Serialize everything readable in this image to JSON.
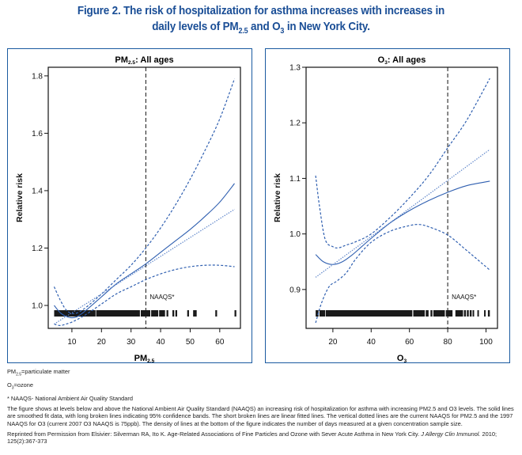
{
  "figure": {
    "title_line1": "Figure 2. The risk of hospitalization for asthma increases with increases in",
    "title_line2_pre": "daily levels of PM",
    "title_line2_sub1": "2.5",
    "title_line2_mid": " and O",
    "title_line2_sub2": "3",
    "title_line2_post": " in New York City.",
    "accent_color": "#1a4e96",
    "line_color": "#2f5fb0"
  },
  "notes": {
    "pm_def_pre": "PM",
    "pm_def_sub": "2.5",
    "pm_def_post": "=particulate matter",
    "o3_def_pre": "O",
    "o3_def_sub": "3",
    "o3_def_post": "=ozone",
    "naaqs_def": "* NAAQS- National Ambient Air Quality Standard",
    "description": "The figure shows at levels below and above the National Ambient Air Quality Standard (NAAQS) an increasing risk of hospitalization for asthma with increasing PM2.5 and O3 levels. The solid lines are smoothed fit data, with long broken lines indicating 95% confidence bands. The short broken lines are linear fitted lines. The vertical dotted lines are the current NAAQS for PM2.5 and the 1997 NAAQS for O3 (current 2007 O3 NAAQS is 75ppb). The density of lines at the bottom of the figure indicates the number of days measured at a given concentration sample size.",
    "citation_pre": "Reprinted from Permission from Elsivier: Silverman RA, Ito K. Age-Related Associations of Fine Particles and Ozone with Sever Acute Asthma in New York City. ",
    "citation_journal": "J Allergy Clin Immunol.",
    "citation_post": " 2010; 125(2):367-373"
  },
  "chart_data": [
    {
      "type": "line",
      "title": "PM2.5: All ages",
      "xlabel": "PM2.5",
      "ylabel": "Relative risk",
      "xlim": [
        2,
        67
      ],
      "ylim": [
        0.92,
        1.83
      ],
      "xticks": [
        10,
        20,
        30,
        40,
        50,
        60
      ],
      "yticks": [
        1.0,
        1.2,
        1.4,
        1.6,
        1.8
      ],
      "ytick_labels": [
        "1.0",
        "1.2",
        "1.4",
        "1.6",
        "1.8"
      ],
      "reference_line": {
        "x": 35,
        "label": "NAAQS*"
      },
      "series": [
        {
          "name": "Smoothed fit",
          "style": "solid",
          "x": [
            4,
            6,
            8,
            10,
            12,
            15,
            20,
            25,
            30,
            35,
            40,
            45,
            50,
            55,
            60,
            65
          ],
          "y": [
            1.0,
            0.975,
            0.962,
            0.957,
            0.962,
            0.985,
            1.03,
            1.075,
            1.11,
            1.145,
            1.185,
            1.225,
            1.265,
            1.31,
            1.36,
            1.425
          ]
        },
        {
          "name": "95% CI upper",
          "style": "long-dash",
          "x": [
            4,
            6,
            8,
            10,
            12,
            15,
            20,
            25,
            30,
            35,
            40,
            45,
            50,
            55,
            60,
            65
          ],
          "y": [
            1.065,
            1.02,
            0.985,
            0.972,
            0.975,
            0.995,
            1.04,
            1.09,
            1.14,
            1.2,
            1.27,
            1.35,
            1.44,
            1.54,
            1.65,
            1.79
          ]
        },
        {
          "name": "95% CI lower",
          "style": "long-dash",
          "x": [
            4,
            6,
            8,
            10,
            12,
            15,
            20,
            25,
            30,
            35,
            40,
            45,
            50,
            55,
            60,
            65
          ],
          "y": [
            0.935,
            0.93,
            0.935,
            0.942,
            0.952,
            0.97,
            1.005,
            1.04,
            1.065,
            1.09,
            1.11,
            1.125,
            1.135,
            1.14,
            1.14,
            1.135
          ]
        },
        {
          "name": "Linear fit",
          "style": "short-dash",
          "x": [
            4,
            65
          ],
          "y": [
            0.935,
            1.335
          ]
        }
      ],
      "rug": [
        [
          4,
          18
        ],
        [
          18.2,
          33
        ],
        [
          33.3,
          36.5
        ],
        [
          36.8,
          39.2
        ],
        [
          39.5,
          41.5
        ],
        [
          42,
          42.6
        ],
        [
          44,
          44.6
        ],
        [
          45,
          45.6
        ],
        [
          49,
          49.6
        ],
        [
          51,
          52.2
        ],
        [
          58.5,
          59.1
        ],
        [
          65,
          65.6
        ]
      ]
    },
    {
      "type": "line",
      "title": "O3: All ages",
      "xlabel": "O3",
      "ylabel": "Relative risk",
      "xlim": [
        6,
        106
      ],
      "ylim": [
        0.83,
        1.3
      ],
      "xticks": [
        20,
        40,
        60,
        80,
        100
      ],
      "yticks": [
        0.9,
        1.0,
        1.1,
        1.2,
        1.3
      ],
      "ytick_labels": [
        "0.9",
        "1.0",
        "1.1",
        "1.2",
        "1.3"
      ],
      "reference_line": {
        "x": 80,
        "label": "NAAQS*"
      },
      "series": [
        {
          "name": "Smoothed fit",
          "style": "solid",
          "x": [
            11,
            15,
            20,
            25,
            30,
            35,
            40,
            50,
            60,
            70,
            80,
            90,
            102
          ],
          "y": [
            0.963,
            0.95,
            0.945,
            0.95,
            0.962,
            0.977,
            0.992,
            1.02,
            1.042,
            1.06,
            1.075,
            1.087,
            1.095
          ]
        },
        {
          "name": "95% CI upper",
          "style": "long-dash",
          "x": [
            11,
            13,
            16,
            20,
            23,
            27,
            32,
            40,
            50,
            60,
            70,
            80,
            90,
            102
          ],
          "y": [
            1.105,
            1.05,
            0.99,
            0.977,
            0.975,
            0.98,
            0.986,
            1.0,
            1.03,
            1.065,
            1.105,
            1.155,
            1.205,
            1.28
          ]
        },
        {
          "name": "95% CI lower",
          "style": "long-dash",
          "x": [
            11,
            14,
            18,
            22,
            27,
            32,
            40,
            50,
            60,
            65,
            70,
            80,
            90,
            102
          ],
          "y": [
            0.84,
            0.875,
            0.905,
            0.915,
            0.93,
            0.955,
            0.985,
            1.005,
            1.015,
            1.017,
            1.013,
            0.998,
            0.97,
            0.935
          ]
        },
        {
          "name": "Linear fit",
          "style": "short-dash",
          "x": [
            11,
            102
          ],
          "y": [
            0.922,
            1.152
          ]
        }
      ],
      "rug": [
        [
          11,
          12.5
        ],
        [
          13,
          16
        ],
        [
          16.3,
          61.5
        ],
        [
          62,
          68
        ],
        [
          68.5,
          70
        ],
        [
          71,
          72
        ],
        [
          72.5,
          78.5
        ],
        [
          79,
          82.5
        ],
        [
          84,
          88
        ],
        [
          88.5,
          89.5
        ],
        [
          90,
          91
        ],
        [
          91.5,
          92.5
        ],
        [
          93,
          93.8
        ],
        [
          95.5,
          96.3
        ],
        [
          99,
          99.8
        ],
        [
          101,
          102
        ]
      ]
    }
  ]
}
